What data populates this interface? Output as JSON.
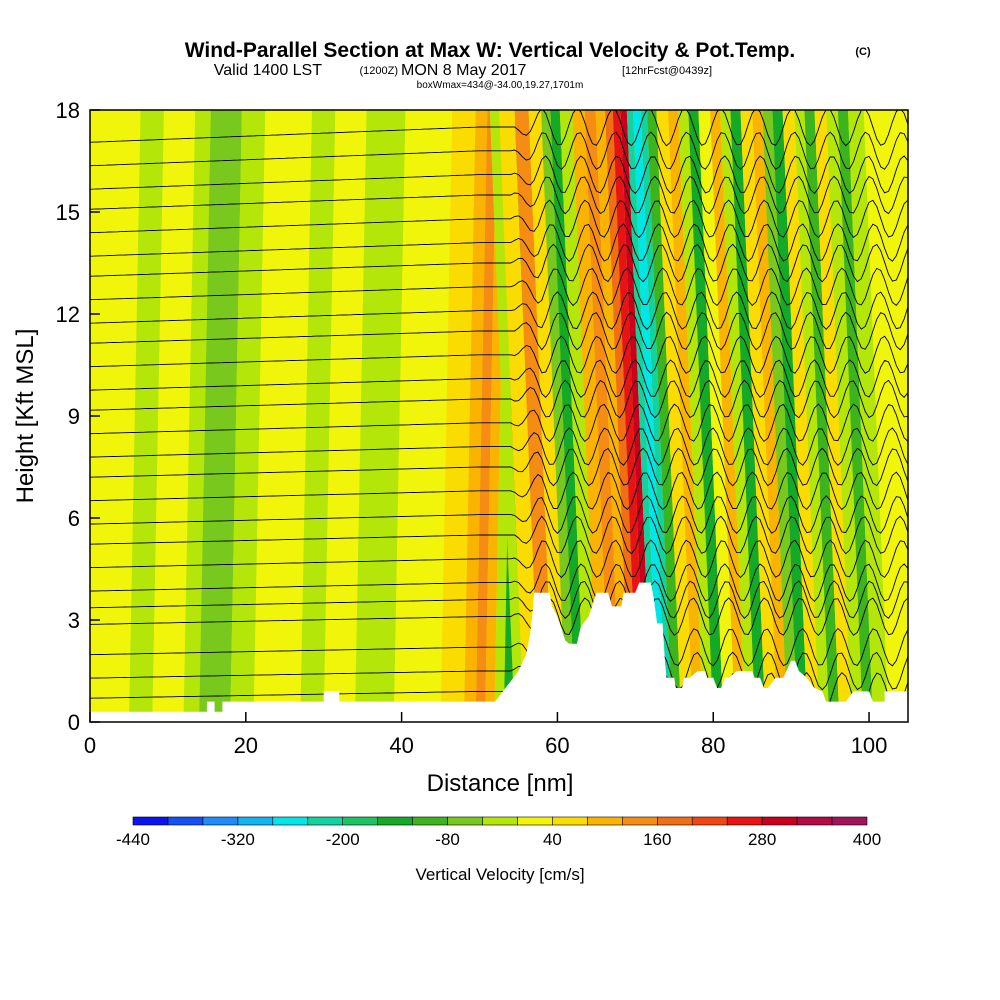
{
  "title": {
    "main": "Wind-Parallel Section at Max W: Vertical Velocity & Pot.Temp.",
    "copyright": "(C)",
    "valid_prefix": "Valid 1400 LST",
    "valid_z": "(1200Z)",
    "valid_date": "MON 8 May 2017",
    "forecast": "[12hrFcst@0439z]",
    "box_info": "boxWmax=434@-34.00,19.27,1701m"
  },
  "chart_data": {
    "type": "heatmap",
    "xlabel": "Distance [nm]",
    "ylabel": "Height [Kft MSL]",
    "xlim": [
      0,
      105
    ],
    "ylim": [
      0,
      18
    ],
    "xticks": [
      {
        "value": 0,
        "label": "0"
      },
      {
        "value": 20,
        "label": "20"
      },
      {
        "value": 40,
        "label": "40"
      },
      {
        "value": 60,
        "label": "60"
      },
      {
        "value": 80,
        "label": "80"
      },
      {
        "value": 100,
        "label": "100"
      }
    ],
    "yticks": [
      {
        "value": 0,
        "label": "0"
      },
      {
        "value": 3,
        "label": "3"
      },
      {
        "value": 6,
        "label": "6"
      },
      {
        "value": 9,
        "label": "9"
      },
      {
        "value": 12,
        "label": "12"
      },
      {
        "value": 15,
        "label": "15"
      },
      {
        "value": 18,
        "label": "18"
      }
    ],
    "colorbar": {
      "label": "Vertical Velocity [cm/s]",
      "min": -440,
      "max": 400,
      "step": 40,
      "colors": [
        "#0a14f0",
        "#1450f5",
        "#1e8cfa",
        "#14b4f0",
        "#00e6e6",
        "#14d2a0",
        "#1ec364",
        "#14aa28",
        "#3cb41e",
        "#78c81e",
        "#b4e60a",
        "#f0f50a",
        "#fadc00",
        "#fab400",
        "#f58c14",
        "#f06e14",
        "#f04614",
        "#e61414",
        "#c8001e",
        "#b40a46",
        "#a0145a"
      ],
      "tick_labels": [
        {
          "value": -440,
          "label": "-440"
        },
        {
          "value": -320,
          "label": "-320"
        },
        {
          "value": -200,
          "label": "-200"
        },
        {
          "value": -80,
          "label": "-80"
        },
        {
          "value": 40,
          "label": "40"
        },
        {
          "value": 160,
          "label": "160"
        },
        {
          "value": 280,
          "label": "280"
        },
        {
          "value": 400,
          "label": "400"
        }
      ]
    },
    "terrain": [
      [
        0,
        0.3
      ],
      [
        15,
        0.3
      ],
      [
        15,
        0.6
      ],
      [
        16,
        0.6
      ],
      [
        16,
        0.3
      ],
      [
        17,
        0.3
      ],
      [
        17,
        0.6
      ],
      [
        30,
        0.6
      ],
      [
        30,
        0.9
      ],
      [
        32,
        0.9
      ],
      [
        32,
        0.6
      ],
      [
        52,
        0.6
      ],
      [
        53,
        0.9
      ],
      [
        54,
        1.2
      ],
      [
        55,
        1.5
      ],
      [
        56,
        2.0
      ],
      [
        56.5,
        2.6
      ],
      [
        56.8,
        3.2
      ],
      [
        57,
        3.8
      ],
      [
        59,
        3.8
      ],
      [
        59.3,
        3.4
      ],
      [
        60,
        3.1
      ],
      [
        61,
        2.4
      ],
      [
        61.5,
        2.3
      ],
      [
        62.5,
        2.3
      ],
      [
        63,
        2.8
      ],
      [
        64,
        3.1
      ],
      [
        65,
        3.8
      ],
      [
        66.5,
        3.8
      ],
      [
        67,
        3.4
      ],
      [
        68.2,
        3.4
      ],
      [
        68.5,
        3.8
      ],
      [
        70,
        3.8
      ],
      [
        70.5,
        4.1
      ],
      [
        72,
        4.1
      ],
      [
        72.4,
        3.6
      ],
      [
        72.8,
        2.9
      ],
      [
        73.5,
        2.9
      ],
      [
        73.8,
        1.8
      ],
      [
        74,
        1.3
      ],
      [
        75,
        1.3
      ],
      [
        75.2,
        1.0
      ],
      [
        76,
        1.0
      ],
      [
        76.2,
        1.3
      ],
      [
        77,
        1.3
      ],
      [
        78,
        1.5
      ],
      [
        79,
        1.5
      ],
      [
        79.2,
        1.3
      ],
      [
        80,
        1.3
      ],
      [
        80.5,
        1.0
      ],
      [
        81,
        1.0
      ],
      [
        81.5,
        1.3
      ],
      [
        82,
        1.3
      ],
      [
        83,
        1.5
      ],
      [
        85,
        1.5
      ],
      [
        85.3,
        1.3
      ],
      [
        86,
        1.3
      ],
      [
        86.5,
        1.0
      ],
      [
        87,
        1.0
      ],
      [
        88,
        1.3
      ],
      [
        89,
        1.3
      ],
      [
        90,
        1.8
      ],
      [
        90.5,
        1.8
      ],
      [
        91,
        1.5
      ],
      [
        92,
        1.3
      ],
      [
        93,
        1.0
      ],
      [
        94,
        0.9
      ],
      [
        94.5,
        0.6
      ],
      [
        97,
        0.6
      ],
      [
        98,
        0.9
      ],
      [
        100,
        0.9
      ],
      [
        100.5,
        0.6
      ],
      [
        102,
        0.6
      ],
      [
        102,
        0.9
      ],
      [
        105,
        0.9
      ]
    ],
    "bands": [
      {
        "w": 5,
        "color": "#f0f50a"
      },
      {
        "w": 3,
        "color": "#b4e60a"
      },
      {
        "w": 4,
        "color": "#f0f50a"
      },
      {
        "w": 2,
        "color": "#b4e60a"
      },
      {
        "w": 4,
        "color": "#78c81e"
      },
      {
        "w": 3,
        "color": "#b4e60a"
      },
      {
        "w": 6,
        "color": "#f0f50a"
      },
      {
        "w": 3,
        "color": "#b4e60a"
      },
      {
        "w": 4,
        "color": "#f0f50a"
      },
      {
        "w": 5,
        "color": "#b4e60a"
      },
      {
        "w": 6,
        "color": "#f0f50a"
      },
      {
        "w": 3,
        "color": "#fadc00"
      },
      {
        "w": 1.5,
        "color": "#fab400"
      },
      {
        "w": 1.2,
        "color": "#f58c14"
      },
      {
        "w": 1.2,
        "color": "#fab400"
      },
      {
        "w": 1.2,
        "color": "#b4e60a"
      },
      {
        "w": 1.4,
        "color": "#14aa28"
      },
      {
        "w": 1.2,
        "color": "#b4e60a"
      },
      {
        "w": 2,
        "color": "#fadc00"
      },
      {
        "w": 1.8,
        "color": "#f58c14"
      },
      {
        "w": 1.6,
        "color": "#fadc00"
      },
      {
        "w": 1.2,
        "color": "#78c81e"
      },
      {
        "w": 1.2,
        "color": "#14aa28"
      },
      {
        "w": 1.6,
        "color": "#b4e60a"
      },
      {
        "w": 1.6,
        "color": "#fab400"
      },
      {
        "w": 1.4,
        "color": "#f58c14"
      },
      {
        "w": 1.2,
        "color": "#fab400"
      },
      {
        "w": 1.0,
        "color": "#f06e14"
      },
      {
        "w": 1.0,
        "color": "#e61414"
      },
      {
        "w": 0.8,
        "color": "#c8001e"
      },
      {
        "w": 0.8,
        "color": "#14d2a0"
      },
      {
        "w": 1.0,
        "color": "#00e6e6"
      },
      {
        "w": 0.8,
        "color": "#14d2a0"
      },
      {
        "w": 1.2,
        "color": "#3cb41e"
      },
      {
        "w": 1.5,
        "color": "#fadc00"
      },
      {
        "w": 1.3,
        "color": "#fab400"
      },
      {
        "w": 1.3,
        "color": "#b4e60a"
      },
      {
        "w": 1.3,
        "color": "#14aa28"
      },
      {
        "w": 1.5,
        "color": "#f0f50a"
      },
      {
        "w": 1.3,
        "color": "#fab400"
      },
      {
        "w": 1.3,
        "color": "#b4e60a"
      },
      {
        "w": 1.3,
        "color": "#14aa28"
      },
      {
        "w": 1.5,
        "color": "#fadc00"
      },
      {
        "w": 1.3,
        "color": "#fab400"
      },
      {
        "w": 1.3,
        "color": "#78c81e"
      },
      {
        "w": 1.3,
        "color": "#14aa28"
      },
      {
        "w": 1.5,
        "color": "#fadc00"
      },
      {
        "w": 1.3,
        "color": "#b4e60a"
      },
      {
        "w": 1.3,
        "color": "#3cb41e"
      },
      {
        "w": 1.5,
        "color": "#fadc00"
      },
      {
        "w": 1.5,
        "color": "#b4e60a"
      },
      {
        "w": 1.3,
        "color": "#3cb41e"
      },
      {
        "w": 2.0,
        "color": "#b4e60a"
      }
    ],
    "contour_heights": [
      0.9,
      1.5,
      2.2,
      3.1,
      3.6,
      4.1,
      4.8,
      5.5,
      6.1,
      6.8,
      7.5,
      8.1,
      8.8,
      9.5,
      10.1,
      10.8,
      11.5,
      12.1,
      12.8,
      13.5,
      14.1,
      14.8,
      15.5,
      16.1,
      16.8,
      17.5
    ]
  }
}
